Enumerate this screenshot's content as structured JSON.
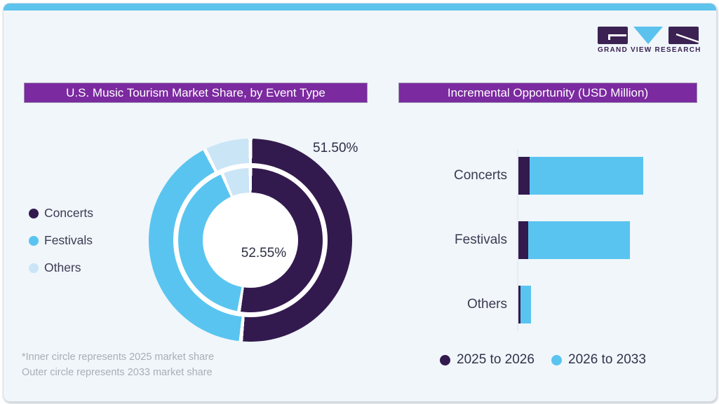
{
  "logo": {
    "wordmark": "GRAND VIEW RESEARCH"
  },
  "colors": {
    "concerts": "#331a4e",
    "festivals": "#5ac4f0",
    "others": "#cae5f6",
    "banner_purple": "#7b2aa0",
    "top_strip_cyan": "#5ec3ed",
    "card_background": "#f0f6fa",
    "label_text": "#3b3b52",
    "footnote_gray": "#a8aeb6",
    "logo_purple": "#3b2253"
  },
  "left_chart": {
    "title": "U.S. Music Tourism Market Share, by Event Type",
    "legend": [
      {
        "label": "Concerts",
        "color": "#331a4e"
      },
      {
        "label": "Festivals",
        "color": "#5ac4f0"
      },
      {
        "label": "Others",
        "color": "#cae5f6"
      }
    ],
    "value_labels": {
      "outer": "51.50%",
      "inner": "52.55%"
    },
    "footnote_line1": "*Inner circle represents 2025 market share",
    "footnote_line2": "Outer circle represents 2033 market share"
  },
  "right_chart": {
    "title": "Incremental Opportunity (USD Million)",
    "legend": [
      {
        "label": "2025 to 2026",
        "color": "#331a4e"
      },
      {
        "label": "2026 to 2033",
        "color": "#5ac4f0"
      }
    ]
  },
  "chart_data": [
    {
      "type": "pie",
      "subtype": "double_ring_donut",
      "title": "U.S. Music Tourism Market Share, by Event Type",
      "categories": [
        "Concerts",
        "Festivals",
        "Others"
      ],
      "series": [
        {
          "name": "2025 market share (inner ring)",
          "values": [
            52.55,
            41.05,
            6.4
          ]
        },
        {
          "name": "2033 market share (outer ring)",
          "values": [
            51.5,
            41.1,
            7.4
          ]
        }
      ],
      "labels_shown": [
        "51.50% (outer, Concerts)",
        "52.55% (inner, Concerts)"
      ],
      "note": "Only Concerts slices carry data labels; Festivals and Others shares estimated from arc angles.",
      "legend_position": "left"
    },
    {
      "type": "bar",
      "subtype": "horizontal_stacked",
      "title": "Incremental Opportunity (USD Million)",
      "categories": [
        "Concerts",
        "Festivals",
        "Others"
      ],
      "series": [
        {
          "name": "2025 to 2026",
          "values": [
            16,
            14,
            3
          ]
        },
        {
          "name": "2026 to 2033",
          "values": [
            162,
            145,
            15
          ]
        }
      ],
      "value_axis_labeled": false,
      "note": "No numeric axis shown; values are relative bar lengths (px) estimated from the image.",
      "legend_position": "bottom"
    }
  ]
}
